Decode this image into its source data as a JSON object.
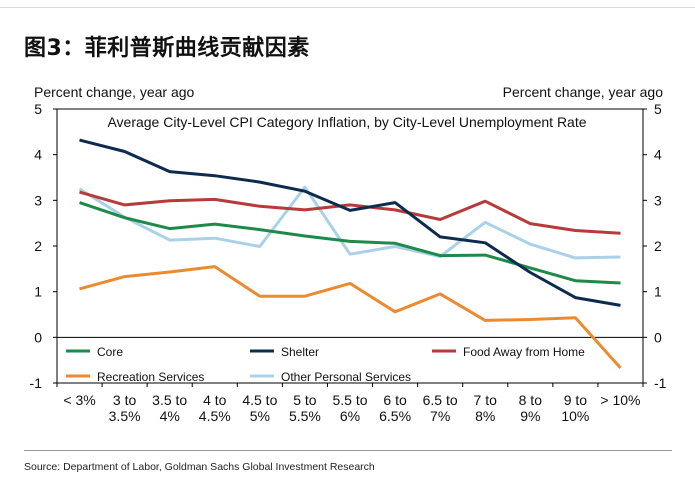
{
  "figure_title": "图3：菲利普斯曲线贡献因素",
  "source": "Source: Department of Labor, Goldman Sachs Global Investment Research",
  "chart_data": {
    "type": "line",
    "title": "Average City-Level CPI Category Inflation, by City-Level Unemployment Rate",
    "ylabel_left": "Percent change, year ago",
    "ylabel_right": "Percent change, year ago",
    "ylim": [
      -1,
      5
    ],
    "yticks": [
      "-1",
      "0",
      "1",
      "2",
      "3",
      "4",
      "5"
    ],
    "grid": false,
    "legend_position": "bottom (inside plot, two rows)",
    "categories": [
      [
        "< 3%"
      ],
      [
        "3 to",
        "3.5%"
      ],
      [
        "3.5 to",
        "4%"
      ],
      [
        "4 to",
        "4.5%"
      ],
      [
        "4.5 to",
        "5%"
      ],
      [
        "5 to",
        "5.5%"
      ],
      [
        "5.5 to",
        "6%"
      ],
      [
        "6 to",
        "6.5%"
      ],
      [
        "6.5 to",
        "7%"
      ],
      [
        "7 to",
        "8%"
      ],
      [
        "8 to",
        "9%"
      ],
      [
        "9 to",
        "10%"
      ],
      [
        "> 10%"
      ]
    ],
    "series": [
      {
        "name": "Core",
        "color": "#1e8a4a",
        "values": [
          2.95,
          2.62,
          2.38,
          2.48,
          2.36,
          2.22,
          2.1,
          2.06,
          1.79,
          1.8,
          1.52,
          1.24,
          1.19
        ]
      },
      {
        "name": "Shelter",
        "color": "#0d2b4f",
        "values": [
          4.32,
          4.07,
          3.63,
          3.54,
          3.4,
          3.2,
          2.78,
          2.95,
          2.2,
          2.07,
          1.42,
          0.87,
          0.7
        ]
      },
      {
        "name": "Food Away from Home",
        "color": "#b93a3a",
        "values": [
          3.18,
          2.9,
          2.99,
          3.02,
          2.87,
          2.79,
          2.9,
          2.79,
          2.58,
          2.98,
          2.49,
          2.34,
          2.28
        ]
      },
      {
        "name": "Recreation Services",
        "color": "#ec8a30",
        "values": [
          1.06,
          1.33,
          1.43,
          1.55,
          0.9,
          0.9,
          1.18,
          0.56,
          0.95,
          0.37,
          0.39,
          0.43,
          -0.67
        ]
      },
      {
        "name": "Other Personal Services",
        "color": "#a9d1ea",
        "values": [
          3.25,
          2.63,
          2.13,
          2.17,
          1.99,
          3.29,
          1.82,
          1.99,
          1.77,
          2.52,
          2.04,
          1.74,
          1.76
        ]
      }
    ]
  }
}
